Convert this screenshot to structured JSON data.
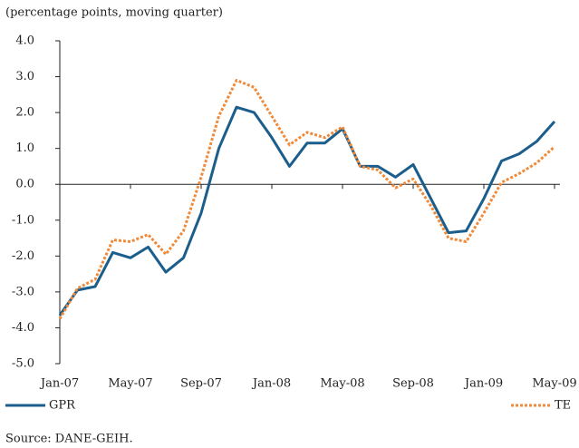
{
  "chart_data": {
    "type": "line",
    "subtitle": "(percentage points, moving quarter)",
    "source": "Source: DANE-GEIH.",
    "categories": [
      "Jan-07",
      null,
      null,
      null,
      "May-07",
      null,
      null,
      null,
      "Sep-07",
      null,
      null,
      null,
      "Jan-08",
      null,
      null,
      null,
      "May-08",
      null,
      null,
      null,
      "Sep-08",
      null,
      null,
      null,
      "Jan-09",
      null,
      null,
      null,
      "May-09"
    ],
    "series": [
      {
        "name": "GPR",
        "color": "#1b5e8c",
        "dash": false,
        "values": [
          -3.65,
          -2.95,
          -2.85,
          -1.9,
          -2.05,
          -1.75,
          -2.45,
          -2.05,
          -0.8,
          1.0,
          2.15,
          2.0,
          1.3,
          0.5,
          1.15,
          1.15,
          1.55,
          0.5,
          0.5,
          0.2,
          0.55,
          -0.4,
          -1.35,
          -1.3,
          -0.4,
          0.65,
          0.85,
          1.2,
          1.75
        ]
      },
      {
        "name": "TE",
        "color": "#ef8a3a",
        "dash": true,
        "values": [
          -3.75,
          -2.9,
          -2.65,
          -1.55,
          -1.6,
          -1.4,
          -1.95,
          -1.3,
          0.2,
          1.9,
          2.9,
          2.7,
          1.9,
          1.1,
          1.45,
          1.3,
          1.6,
          0.5,
          0.4,
          -0.1,
          0.15,
          -0.6,
          -1.5,
          -1.6,
          -0.8,
          0.05,
          0.3,
          0.6,
          1.05
        ]
      }
    ],
    "ylim": [
      -5,
      4
    ],
    "yticks": [
      {
        "value": 4,
        "label": "4.0"
      },
      {
        "value": 3,
        "label": "3.0"
      },
      {
        "value": 2,
        "label": "2.0"
      },
      {
        "value": 1,
        "label": "1.0"
      },
      {
        "value": 0,
        "label": "0.0"
      },
      {
        "value": -1,
        "label": "-1.0"
      },
      {
        "value": -2,
        "label": "-2.0"
      },
      {
        "value": -3,
        "label": "-3.0"
      },
      {
        "value": -4,
        "label": "-4.0"
      },
      {
        "value": -5,
        "label": "-5.0"
      }
    ],
    "legend": "bottom"
  }
}
